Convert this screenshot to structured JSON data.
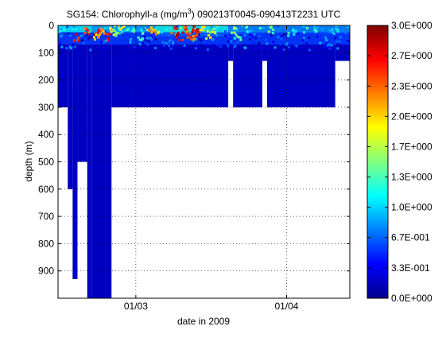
{
  "chart_data": {
    "type": "scatter",
    "title": {
      "prefix": "SG154: Chlorophyll-a (mg/m",
      "superscript": "3",
      "suffix": ") 090213T0045-090413T2231 UTC"
    },
    "xlabel": "date in 2009",
    "ylabel": "depth (m)",
    "x_range": [
      "2009-02-13",
      "2009-04-14"
    ],
    "y_range": [
      0,
      1000
    ],
    "y_reversed": true,
    "x_ticks": [
      {
        "date": "2009-03-01",
        "label": "01/03"
      },
      {
        "date": "2009-04-01",
        "label": "01/04"
      }
    ],
    "y_ticks": [
      0,
      100,
      200,
      300,
      400,
      500,
      600,
      700,
      800,
      900
    ],
    "grid": "dotted",
    "colorbar": {
      "min": 0,
      "max": 3,
      "colormap": "jet",
      "ticks": [
        {
          "value": 0.0,
          "label": "0.0E+000"
        },
        {
          "value": 0.333,
          "label": "3.3E-001"
        },
        {
          "value": 0.667,
          "label": "6.7E-001"
        },
        {
          "value": 1.0,
          "label": "1.0E+000"
        },
        {
          "value": 1.333,
          "label": "1.3E+000"
        },
        {
          "value": 1.667,
          "label": "1.7E+000"
        },
        {
          "value": 2.0,
          "label": "2.0E+000"
        },
        {
          "value": 2.333,
          "label": "2.3E+000"
        },
        {
          "value": 2.667,
          "label": "2.7E+000"
        },
        {
          "value": 3.0,
          "label": "3.0E+000"
        }
      ]
    },
    "background_value": 0.2,
    "sampled_regions": [
      {
        "start": "2009-02-13",
        "end": "2009-02-15",
        "max_depth": 300
      },
      {
        "start": "2009-02-15",
        "end": "2009-02-16",
        "max_depth": 600
      },
      {
        "start": "2009-02-16",
        "end": "2009-02-17",
        "max_depth": 930
      },
      {
        "start": "2009-02-17",
        "end": "2009-02-19",
        "max_depth": 500
      },
      {
        "start": "2009-02-19",
        "end": "2009-02-20",
        "max_depth": 1000
      },
      {
        "start": "2009-02-20",
        "end": "2009-02-24",
        "max_depth": 1000
      },
      {
        "start": "2009-02-24",
        "end": "2009-03-20",
        "max_depth": 300
      },
      {
        "start": "2009-03-20",
        "end": "2009-03-21",
        "max_depth": 130
      },
      {
        "start": "2009-03-21",
        "end": "2009-03-27",
        "max_depth": 300
      },
      {
        "start": "2009-03-27",
        "end": "2009-03-28",
        "max_depth": 130
      },
      {
        "start": "2009-03-28",
        "end": "2009-04-11",
        "max_depth": 300
      },
      {
        "start": "2009-04-11",
        "end": "2009-04-14",
        "max_depth": 130
      }
    ],
    "surface_layer": [
      {
        "start": "2009-02-13",
        "end": "2009-02-20",
        "depth": [
          0,
          25
        ],
        "value": 1.1
      },
      {
        "start": "2009-02-20",
        "end": "2009-03-05",
        "depth": [
          0,
          25
        ],
        "value": 0.9
      },
      {
        "start": "2009-03-05",
        "end": "2009-03-20",
        "depth": [
          0,
          40
        ],
        "value": 1.2
      },
      {
        "start": "2009-03-20",
        "end": "2009-04-14",
        "depth": [
          0,
          30
        ],
        "value": 0.8
      },
      {
        "start": "2009-02-13",
        "end": "2009-04-14",
        "depth": [
          25,
          70
        ],
        "value": 0.55
      }
    ],
    "patches": [
      {
        "date": "2009-02-17",
        "depth": 45,
        "value": 2.9
      },
      {
        "date": "2009-02-19",
        "depth": 25,
        "value": 2.7
      },
      {
        "date": "2009-02-21",
        "depth": 20,
        "value": 3.0
      },
      {
        "date": "2009-02-21",
        "depth": 45,
        "value": 2.4
      },
      {
        "date": "2009-02-22",
        "depth": 20,
        "value": 2.5
      },
      {
        "date": "2009-02-23",
        "depth": 40,
        "value": 2.8
      },
      {
        "date": "2009-02-24",
        "depth": 15,
        "value": 2.2
      },
      {
        "date": "2009-02-25",
        "depth": 30,
        "value": 1.9
      },
      {
        "date": "2009-02-26",
        "depth": 10,
        "value": 2.0
      },
      {
        "date": "2009-02-28",
        "depth": 20,
        "value": 1.6
      },
      {
        "date": "2009-03-02",
        "depth": 40,
        "value": 1.7
      },
      {
        "date": "2009-03-04",
        "depth": 15,
        "value": 2.5
      },
      {
        "date": "2009-03-05",
        "depth": 30,
        "value": 2.3
      },
      {
        "date": "2009-03-09",
        "depth": 20,
        "value": 2.8
      },
      {
        "date": "2009-03-10",
        "depth": 40,
        "value": 3.0
      },
      {
        "date": "2009-03-11",
        "depth": 15,
        "value": 2.9
      },
      {
        "date": "2009-03-12",
        "depth": 35,
        "value": 2.6
      },
      {
        "date": "2009-03-13",
        "depth": 15,
        "value": 3.0
      },
      {
        "date": "2009-03-13",
        "depth": 45,
        "value": 2.7
      },
      {
        "date": "2009-03-14",
        "depth": 25,
        "value": 2.8
      },
      {
        "date": "2009-03-15",
        "depth": 10,
        "value": 2.4
      },
      {
        "date": "2009-03-16",
        "depth": 35,
        "value": 2.1
      },
      {
        "date": "2009-03-17",
        "depth": 15,
        "value": 1.8
      },
      {
        "date": "2009-03-21",
        "depth": 20,
        "value": 1.9
      },
      {
        "date": "2009-03-22",
        "depth": 40,
        "value": 1.6
      },
      {
        "date": "2009-03-24",
        "depth": 10,
        "value": 1.5
      },
      {
        "date": "2009-03-29",
        "depth": 15,
        "value": 1.7
      },
      {
        "date": "2009-04-02",
        "depth": 25,
        "value": 1.4
      },
      {
        "date": "2009-04-07",
        "depth": 15,
        "value": 1.3
      },
      {
        "date": "2009-04-11",
        "depth": 20,
        "value": 1.4
      }
    ]
  }
}
